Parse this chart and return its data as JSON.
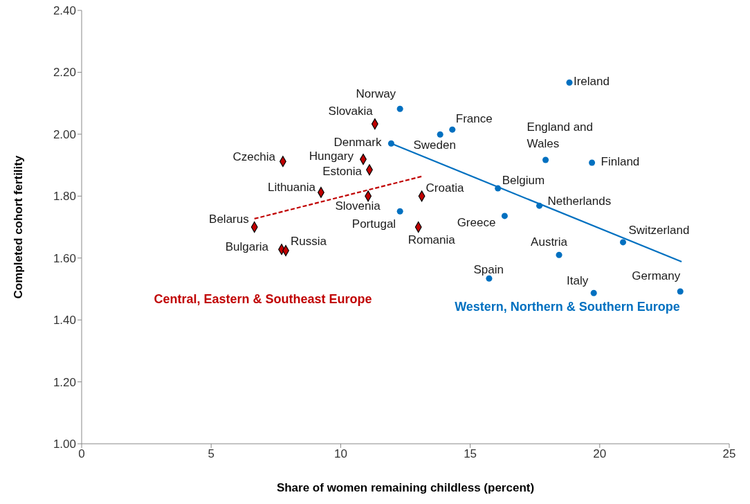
{
  "chart_data": {
    "type": "scatter",
    "xlabel": "Share of women remaining childless (percent)",
    "ylabel": "Completed cohort fertility",
    "xlim": [
      0,
      25
    ],
    "xticks": [
      0,
      5,
      10,
      15,
      20,
      25
    ],
    "ylim": [
      1,
      2.4
    ],
    "yticks": [
      {
        "value": 1,
        "label": "1.00"
      },
      {
        "value": 1.2,
        "label": "1.20"
      },
      {
        "value": 1.4,
        "label": "1.40"
      },
      {
        "value": 1.6,
        "label": "1.60"
      },
      {
        "value": 1.8,
        "label": "1.80"
      },
      {
        "value": 2,
        "label": "2.00"
      },
      {
        "value": 2.2,
        "label": "2.20"
      },
      {
        "value": 2.4,
        "label": "2.40"
      }
    ],
    "grid": false,
    "legend": false,
    "series": [
      {
        "name": "Western, Northern & Southern Europe",
        "marker": "circle",
        "color": "#0070c0",
        "x": [
          18.83,
          12.29,
          14.31,
          13.84,
          11.95,
          17.91,
          19.7,
          16.07,
          17.67,
          12.29,
          16.33,
          20.9,
          18.43,
          15.73,
          19.77,
          23.11
        ],
        "values": [
          2.167,
          2.082,
          2.015,
          1.999,
          1.97,
          1.917,
          1.908,
          1.825,
          1.769,
          1.751,
          1.736,
          1.651,
          1.61,
          1.534,
          1.487,
          1.492
        ]
      },
      {
        "name": "Central, Eastern & Southeast Europe",
        "marker": "diamond",
        "color": "#c00000",
        "x": [
          11.32,
          7.77,
          10.87,
          11.11,
          9.24,
          11.06,
          13.13,
          13.0,
          6.67,
          7.72,
          7.88
        ],
        "values": [
          2.033,
          1.912,
          1.919,
          1.885,
          1.812,
          1.8,
          1.8,
          1.7,
          1.7,
          1.628,
          1.624
        ]
      },
      {
        "type": "line",
        "line_style": "solid",
        "marker": "none",
        "color": "#0070c0",
        "x": [
          11.95,
          23.16
        ],
        "values": [
          1.97,
          1.588
        ]
      },
      {
        "type": "line",
        "line_style": "dashed",
        "marker": "none",
        "color": "#c00000",
        "x": [
          6.67,
          13.19
        ],
        "values": [
          1.727,
          1.865
        ]
      }
    ],
    "annotations": [
      {
        "text": "Ireland",
        "x": 18.83,
        "y": 2.167
      },
      {
        "text": "Norway",
        "x": 12.29,
        "y": 2.082
      },
      {
        "text": "France",
        "x": 14.31,
        "y": 2.015
      },
      {
        "text": "Sweden",
        "x": 13.84,
        "y": 1.999
      },
      {
        "text": "Denmark",
        "x": 11.95,
        "y": 1.97
      },
      {
        "text": "England and Wales",
        "x": 17.91,
        "y": 1.917
      },
      {
        "text": "Finland",
        "x": 19.7,
        "y": 1.908
      },
      {
        "text": "Belgium",
        "x": 16.07,
        "y": 1.825
      },
      {
        "text": "Netherlands",
        "x": 17.67,
        "y": 1.769
      },
      {
        "text": "Portugal",
        "x": 12.29,
        "y": 1.751
      },
      {
        "text": "Greece",
        "x": 16.33,
        "y": 1.736
      },
      {
        "text": "Switzerland",
        "x": 20.9,
        "y": 1.651
      },
      {
        "text": "Austria",
        "x": 18.43,
        "y": 1.61
      },
      {
        "text": "Spain",
        "x": 15.73,
        "y": 1.534
      },
      {
        "text": "Italy",
        "x": 19.77,
        "y": 1.487
      },
      {
        "text": "Germany",
        "x": 23.11,
        "y": 1.492
      },
      {
        "text": "Slovakia",
        "x": 11.32,
        "y": 2.033
      },
      {
        "text": "Czechia",
        "x": 7.77,
        "y": 1.912
      },
      {
        "text": "Hungary",
        "x": 10.87,
        "y": 1.919
      },
      {
        "text": "Estonia",
        "x": 11.11,
        "y": 1.885
      },
      {
        "text": "Lithuania",
        "x": 9.24,
        "y": 1.812
      },
      {
        "text": "Slovenia",
        "x": 11.06,
        "y": 1.8
      },
      {
        "text": "Croatia",
        "x": 13.13,
        "y": 1.8
      },
      {
        "text": "Romania",
        "x": 13.0,
        "y": 1.7
      },
      {
        "text": "Belarus",
        "x": 6.67,
        "y": 1.7
      },
      {
        "text": "Bulgaria",
        "x": 7.72,
        "y": 1.628
      },
      {
        "text": "Russia",
        "x": 7.88,
        "y": 1.624
      }
    ]
  }
}
